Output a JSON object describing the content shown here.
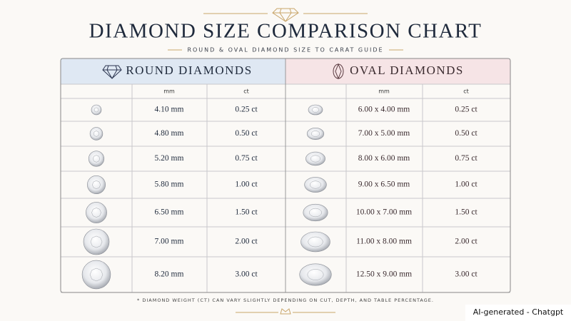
{
  "header": {
    "title": "DIAMOND SIZE COMPARISON CHART",
    "subtitle": "ROUND & OVAL DIAMOND SIZE TO CARAT GUIDE"
  },
  "table": {
    "round": {
      "title": "ROUND DIAMONDS",
      "columns": [
        "mm",
        "ct"
      ],
      "rows": [
        [
          "4.10 mm",
          "0.25 ct"
        ],
        [
          "4.80 mm",
          "0.50 ct"
        ],
        [
          "5.20 mm",
          "0.75 ct"
        ],
        [
          "5.80 mm",
          "1.00 ct"
        ],
        [
          "6.50 mm",
          "1.50 ct"
        ],
        [
          "7.00 mm",
          "2.00 ct"
        ],
        [
          "8.20 mm",
          "3.00 ct"
        ]
      ]
    },
    "oval": {
      "title": "OVAL DIAMONDS",
      "columns": [
        "mm",
        "ct"
      ],
      "rows": [
        [
          "6.00 x 4.00 mm",
          "0.25 ct"
        ],
        [
          "7.00 x 5.00 mm",
          "0.50 ct"
        ],
        [
          "8.00 x 6.00 mm",
          "0.75 ct"
        ],
        [
          "9.00 x 6.50 mm",
          "1.00 ct"
        ],
        [
          "10.00 x 7.00 mm",
          "1.50 ct"
        ],
        [
          "11.00 x 8.00 mm",
          "2.00 ct"
        ],
        [
          "12.50 x 9.00 mm",
          "3.00 ct"
        ]
      ]
    }
  },
  "footnote": "* DIAMOND WEIGHT (CT) CAN VARY SLIGHTLY DEPENDING ON CUT, DEPTH, AND TABLE PERCENTAGE.",
  "watermark": "AI-generated - Chatgpt"
}
